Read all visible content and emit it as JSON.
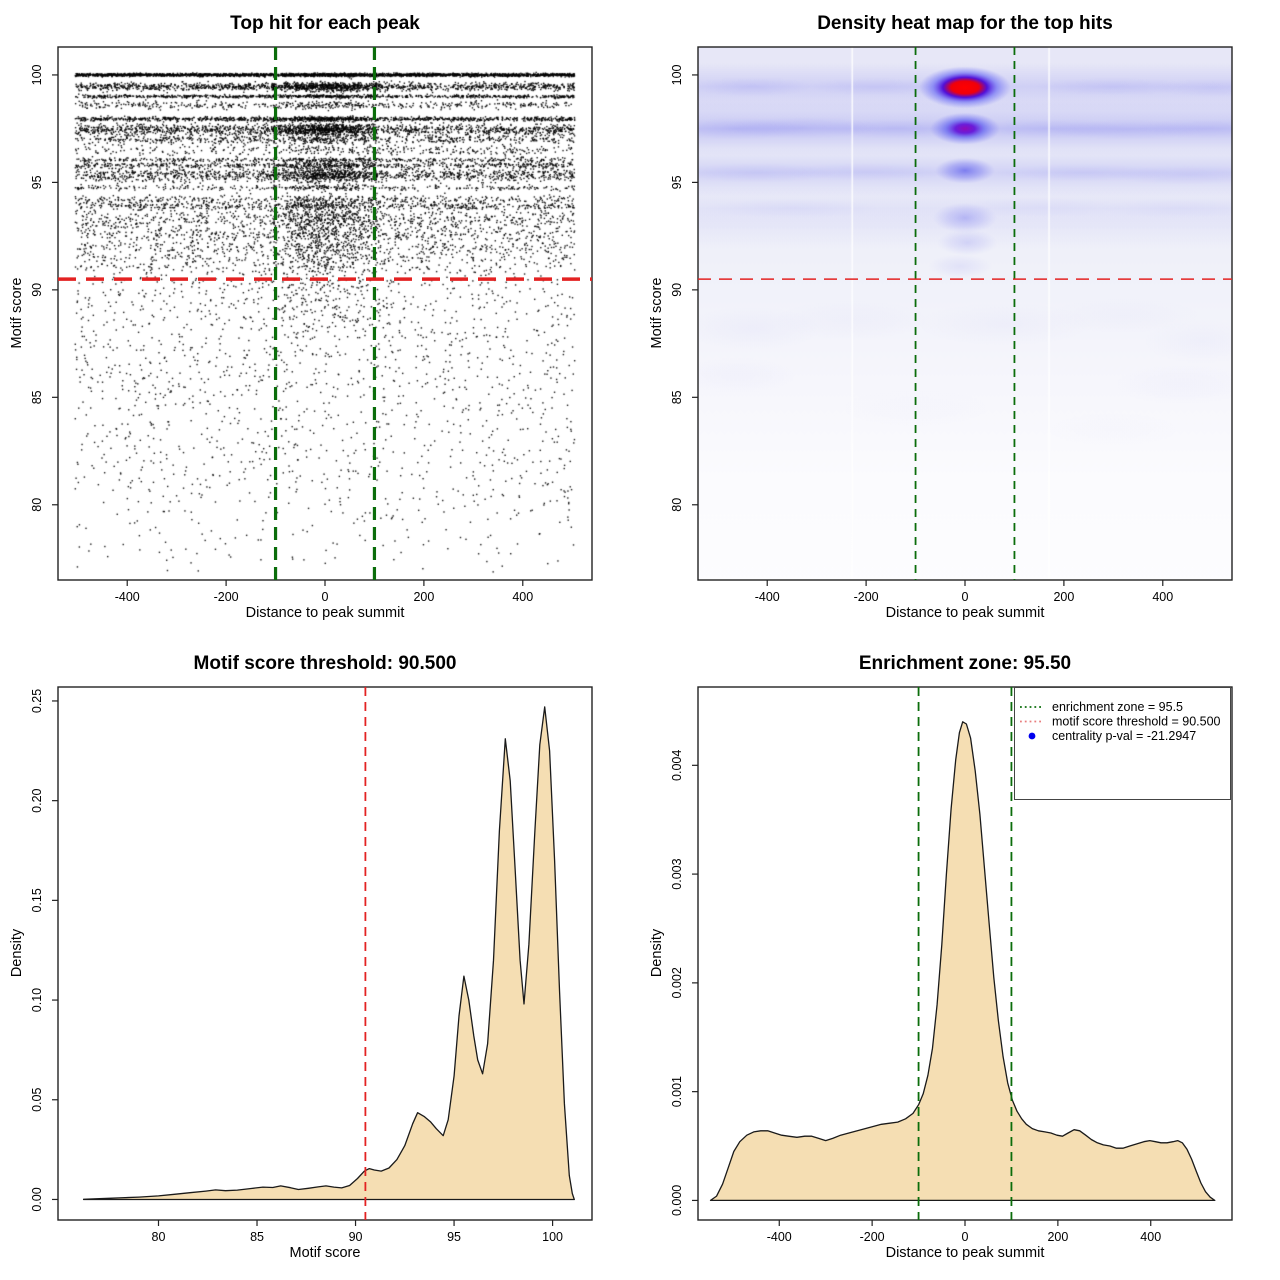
{
  "colors": {
    "zone_green": "#0b6d0b",
    "threshold_red": "#e32222",
    "density_fill": "#f5deb3",
    "density_stroke": "#1a1a1a",
    "scatter_point": "#000000",
    "legend_red": "#e87d7d",
    "legend_blue": "#0000ee",
    "heat_blue": "#0000ff",
    "heat_red": "#ff0000"
  },
  "chart_data": [
    {
      "type": "scatter",
      "title": "Top hit for each peak",
      "xlabel": "Distance to peak summit",
      "ylabel": "Motif score",
      "xlim": [
        -540,
        540
      ],
      "ylim": [
        76.5,
        101.3
      ],
      "x_ticks": [
        -400,
        -200,
        0,
        200,
        400
      ],
      "y_ticks": [
        80,
        85,
        90,
        95,
        100
      ],
      "threshold_line": {
        "orientation": "horizontal",
        "value": 90.5
      },
      "enrichment_zone": [
        -100,
        100
      ],
      "seed": 1234,
      "x_data_range": [
        -505,
        505
      ],
      "score_bands": [
        [
          100.0,
          2600,
          0.035,
          0.3
        ],
        [
          99.45,
          1250,
          0.09,
          1.6
        ],
        [
          99.0,
          800,
          0.035,
          0.6
        ],
        [
          98.6,
          420,
          0.09,
          0.8
        ],
        [
          97.95,
          1000,
          0.05,
          1.0
        ],
        [
          97.45,
          1350,
          0.13,
          1.8
        ],
        [
          97.0,
          550,
          0.1,
          0.8
        ],
        [
          96.5,
          330,
          0.12,
          0.5
        ],
        [
          96.05,
          380,
          0.05,
          1.0
        ],
        [
          95.8,
          550,
          0.07,
          1.2
        ],
        [
          95.35,
          1150,
          0.16,
          1.6
        ],
        [
          94.75,
          280,
          0.06,
          1.5
        ],
        [
          94.2,
          400,
          0.1,
          0.6
        ],
        [
          93.9,
          480,
          0.08,
          0.8
        ],
        [
          93.25,
          750,
          0.28,
          1.8
        ],
        [
          92.55,
          380,
          0.15,
          1.0
        ],
        [
          92.0,
          330,
          0.14,
          1.2
        ],
        [
          91.5,
          240,
          0.16,
          1.4
        ],
        [
          91.0,
          200,
          0.2,
          1.6
        ]
      ],
      "low_scatter": {
        "count": 1550,
        "score_min": 76.7,
        "score_max": 90.6,
        "shape": 0.62
      },
      "central_low_cluster": {
        "count": 140,
        "x_sd": 60,
        "score_min": 87.5,
        "score_max": 90.5
      }
    },
    {
      "type": "heatmap",
      "title": "Density heat map for the top hits",
      "xlabel": "Distance to peak summit",
      "ylabel": "Motif score",
      "xlim": [
        -540,
        540
      ],
      "ylim": [
        76.5,
        101.3
      ],
      "x_ticks": [
        -400,
        -200,
        0,
        200,
        400
      ],
      "y_ticks": [
        80,
        85,
        90,
        95,
        100
      ],
      "threshold_line": {
        "orientation": "horizontal",
        "value": 90.5
      },
      "enrichment_zone": [
        -100,
        100
      ],
      "background_gradient": [
        [
          0,
          "#e7e7f7"
        ],
        [
          0.22,
          "#ebecf8"
        ],
        [
          0.45,
          "#f1f2fa"
        ],
        [
          0.62,
          "#f6f6fc"
        ],
        [
          0.8,
          "#fbfbfe"
        ],
        [
          1,
          "#fdfdff"
        ]
      ],
      "score_bands": [
        [
          99.45,
          0.18,
          8
        ],
        [
          98.6,
          0.05,
          6
        ],
        [
          97.5,
          0.26,
          9
        ],
        [
          95.45,
          0.18,
          8
        ],
        [
          93.8,
          0.08,
          7
        ],
        [
          92.9,
          0.05,
          7
        ]
      ],
      "hotspots": [
        [
          0,
          99.42,
          46,
          21,
          "hot",
          1
        ],
        [
          0,
          97.5,
          35,
          16,
          "warm",
          1
        ],
        [
          0,
          95.55,
          30,
          13,
          "cool",
          0.62
        ],
        [
          0,
          93.35,
          32,
          15,
          "cool",
          0.3
        ],
        [
          5,
          92.2,
          30,
          13,
          "cool",
          0.17
        ],
        [
          -10,
          91.1,
          32,
          12,
          "cool",
          0.09
        ],
        [
          -430,
          99.45,
          60,
          10,
          "cool",
          0.1
        ],
        [
          -180,
          99.45,
          70,
          9,
          "cool",
          0.08
        ],
        [
          300,
          99.45,
          80,
          9,
          "cool",
          0.09
        ],
        [
          500,
          99.4,
          60,
          9,
          "cool",
          0.08
        ],
        [
          -460,
          97.5,
          70,
          11,
          "cool",
          0.13
        ],
        [
          -330,
          97.55,
          80,
          11,
          "cool",
          0.12
        ],
        [
          -140,
          97.5,
          80,
          10,
          "cool",
          0.1
        ],
        [
          170,
          97.5,
          80,
          10,
          "cool",
          0.1
        ],
        [
          330,
          97.45,
          80,
          10,
          "cool",
          0.11
        ],
        [
          490,
          97.5,
          70,
          10,
          "cool",
          0.1
        ],
        [
          -420,
          95.45,
          80,
          10,
          "cool",
          0.09
        ],
        [
          -200,
          95.5,
          90,
          9,
          "cool",
          0.07
        ],
        [
          240,
          95.45,
          90,
          9,
          "cool",
          0.08
        ],
        [
          450,
          95.35,
          80,
          10,
          "cool",
          0.08
        ],
        [
          -350,
          93.8,
          90,
          10,
          "cool",
          0.05
        ],
        [
          150,
          93.85,
          90,
          10,
          "cool",
          0.04
        ],
        [
          430,
          93.8,
          80,
          10,
          "cool",
          0.045
        ],
        [
          -430,
          88.2,
          70,
          22,
          "cool",
          0.035
        ],
        [
          -230,
          88.6,
          80,
          20,
          "cool",
          0.025
        ],
        [
          80,
          88.4,
          90,
          22,
          "cool",
          0.03
        ],
        [
          320,
          88.8,
          80,
          18,
          "cool",
          0.02
        ],
        [
          480,
          87.6,
          60,
          22,
          "cool",
          0.03
        ],
        [
          -460,
          86,
          60,
          18,
          "cool",
          0.025
        ],
        [
          440,
          85.6,
          70,
          20,
          "cool",
          0.025
        ],
        [
          -100,
          84.5,
          80,
          20,
          "cool",
          0.012
        ],
        [
          300,
          83.5,
          70,
          18,
          "cool",
          0.012
        ]
      ],
      "white_stripes": [
        -228,
        170
      ]
    },
    {
      "type": "area",
      "title": "Motif score threshold: 90.500",
      "xlabel": "Motif score",
      "ylabel": "Density",
      "xlim": [
        74.9,
        102.0
      ],
      "ylim": [
        -0.0103,
        0.257
      ],
      "x_ticks": [
        80,
        85,
        90,
        95,
        100
      ],
      "y_ticks": [
        0,
        0.05,
        0.1,
        0.15,
        0.2,
        0.25
      ],
      "y_tick_labels": [
        "0.00",
        "0.05",
        "0.10",
        "0.15",
        "0.20",
        "0.25"
      ],
      "threshold_line": {
        "orientation": "vertical",
        "value": 90.5
      },
      "curve": [
        [
          76.2,
          0.0001
        ],
        [
          77,
          0.0004
        ],
        [
          78,
          0.0008
        ],
        [
          79,
          0.0012
        ],
        [
          80,
          0.0018
        ],
        [
          80.8,
          0.0026
        ],
        [
          81.6,
          0.0034
        ],
        [
          82.4,
          0.0042
        ],
        [
          82.9,
          0.0048
        ],
        [
          83.4,
          0.0044
        ],
        [
          84,
          0.0047
        ],
        [
          84.7,
          0.0055
        ],
        [
          85.3,
          0.0062
        ],
        [
          85.8,
          0.006
        ],
        [
          86.2,
          0.0068
        ],
        [
          86.7,
          0.0059
        ],
        [
          87.1,
          0.005
        ],
        [
          87.6,
          0.0056
        ],
        [
          88.1,
          0.0063
        ],
        [
          88.5,
          0.0068
        ],
        [
          88.9,
          0.0062
        ],
        [
          89.3,
          0.0058
        ],
        [
          89.7,
          0.007
        ],
        [
          90.1,
          0.0105
        ],
        [
          90.45,
          0.0142
        ],
        [
          90.7,
          0.0155
        ],
        [
          90.95,
          0.0148
        ],
        [
          91.3,
          0.0142
        ],
        [
          91.7,
          0.0158
        ],
        [
          92.1,
          0.02
        ],
        [
          92.5,
          0.027
        ],
        [
          92.9,
          0.038
        ],
        [
          93.15,
          0.0435
        ],
        [
          93.5,
          0.0415
        ],
        [
          93.8,
          0.039
        ],
        [
          94.1,
          0.0355
        ],
        [
          94.45,
          0.032
        ],
        [
          94.7,
          0.04
        ],
        [
          95,
          0.062
        ],
        [
          95.25,
          0.092
        ],
        [
          95.5,
          0.112
        ],
        [
          95.75,
          0.1
        ],
        [
          96,
          0.082
        ],
        [
          96.2,
          0.07
        ],
        [
          96.45,
          0.063
        ],
        [
          96.7,
          0.078
        ],
        [
          97,
          0.12
        ],
        [
          97.3,
          0.185
        ],
        [
          97.6,
          0.231
        ],
        [
          97.85,
          0.21
        ],
        [
          98.1,
          0.165
        ],
        [
          98.35,
          0.12
        ],
        [
          98.55,
          0.098
        ],
        [
          98.8,
          0.128
        ],
        [
          99.1,
          0.185
        ],
        [
          99.35,
          0.228
        ],
        [
          99.6,
          0.247
        ],
        [
          99.85,
          0.225
        ],
        [
          100.1,
          0.17
        ],
        [
          100.35,
          0.105
        ],
        [
          100.6,
          0.048
        ],
        [
          100.85,
          0.012
        ],
        [
          101,
          0.003
        ],
        [
          101.1,
          0
        ]
      ]
    },
    {
      "type": "area",
      "title": "Enrichment zone: 95.50",
      "xlabel": "Distance to peak summit",
      "ylabel": "Density",
      "xlim": [
        -575,
        575
      ],
      "ylim": [
        -0.00018,
        0.00472
      ],
      "x_ticks": [
        -400,
        -200,
        0,
        200,
        400
      ],
      "y_ticks": [
        0,
        0.001,
        0.002,
        0.003,
        0.004
      ],
      "y_tick_labels": [
        "0.000",
        "0.001",
        "0.002",
        "0.003",
        "0.004"
      ],
      "enrichment_zone": [
        -100,
        100
      ],
      "legend_position": "topright",
      "legend": {
        "items": [
          {
            "symbol": "dotted-line",
            "color": "#0b6d0b",
            "label": "enrichment zone = 95.5"
          },
          {
            "symbol": "dotted-line",
            "color": "#e87d7d",
            "label": "motif score threshold = 90.500"
          },
          {
            "symbol": "point",
            "color": "#0000ee",
            "label": "centrality p-val = -21.2947"
          }
        ]
      },
      "curve": [
        [
          -548,
          0
        ],
        [
          -535,
          4e-05
        ],
        [
          -522,
          0.00015
        ],
        [
          -510,
          0.0003
        ],
        [
          -498,
          0.00045
        ],
        [
          -485,
          0.00054
        ],
        [
          -470,
          0.0006
        ],
        [
          -455,
          0.00063
        ],
        [
          -440,
          0.00064
        ],
        [
          -425,
          0.00064
        ],
        [
          -410,
          0.00062
        ],
        [
          -395,
          0.0006
        ],
        [
          -380,
          0.00059
        ],
        [
          -362,
          0.00058
        ],
        [
          -345,
          0.00059
        ],
        [
          -330,
          0.00059
        ],
        [
          -315,
          0.00057
        ],
        [
          -300,
          0.00055
        ],
        [
          -285,
          0.00057
        ],
        [
          -268,
          0.0006
        ],
        [
          -250,
          0.00062
        ],
        [
          -232,
          0.00064
        ],
        [
          -215,
          0.00066
        ],
        [
          -198,
          0.00068
        ],
        [
          -180,
          0.0007
        ],
        [
          -162,
          0.00071
        ],
        [
          -145,
          0.00072
        ],
        [
          -128,
          0.00075
        ],
        [
          -112,
          0.0008
        ],
        [
          -100,
          0.00088
        ],
        [
          -90,
          0.00098
        ],
        [
          -80,
          0.00115
        ],
        [
          -70,
          0.0014
        ],
        [
          -60,
          0.0018
        ],
        [
          -50,
          0.00235
        ],
        [
          -40,
          0.003
        ],
        [
          -30,
          0.0036
        ],
        [
          -20,
          0.00405
        ],
        [
          -12,
          0.0043
        ],
        [
          -5,
          0.0044
        ],
        [
          3,
          0.00438
        ],
        [
          12,
          0.00425
        ],
        [
          22,
          0.00395
        ],
        [
          32,
          0.00355
        ],
        [
          42,
          0.00305
        ],
        [
          52,
          0.00255
        ],
        [
          62,
          0.00205
        ],
        [
          72,
          0.00165
        ],
        [
          82,
          0.00132
        ],
        [
          92,
          0.00108
        ],
        [
          102,
          0.00092
        ],
        [
          112,
          0.00082
        ],
        [
          122,
          0.00075
        ],
        [
          132,
          0.0007
        ],
        [
          145,
          0.00066
        ],
        [
          158,
          0.00064
        ],
        [
          172,
          0.00063
        ],
        [
          185,
          0.00062
        ],
        [
          198,
          0.0006
        ],
        [
          210,
          0.00059
        ],
        [
          222,
          0.00062
        ],
        [
          235,
          0.00065
        ],
        [
          247,
          0.00064
        ],
        [
          260,
          0.0006
        ],
        [
          272,
          0.00056
        ],
        [
          285,
          0.00053
        ],
        [
          298,
          0.00051
        ],
        [
          312,
          0.0005
        ],
        [
          326,
          0.00048
        ],
        [
          340,
          0.00048
        ],
        [
          355,
          0.0005
        ],
        [
          370,
          0.00052
        ],
        [
          385,
          0.00054
        ],
        [
          398,
          0.00055
        ],
        [
          410,
          0.00054
        ],
        [
          422,
          0.00053
        ],
        [
          435,
          0.00053
        ],
        [
          448,
          0.00054
        ],
        [
          458,
          0.00055
        ],
        [
          468,
          0.00053
        ],
        [
          478,
          0.00047
        ],
        [
          488,
          0.00038
        ],
        [
          498,
          0.00027
        ],
        [
          508,
          0.00016
        ],
        [
          518,
          8e-05
        ],
        [
          528,
          3e-05
        ],
        [
          538,
          0
        ]
      ]
    }
  ]
}
